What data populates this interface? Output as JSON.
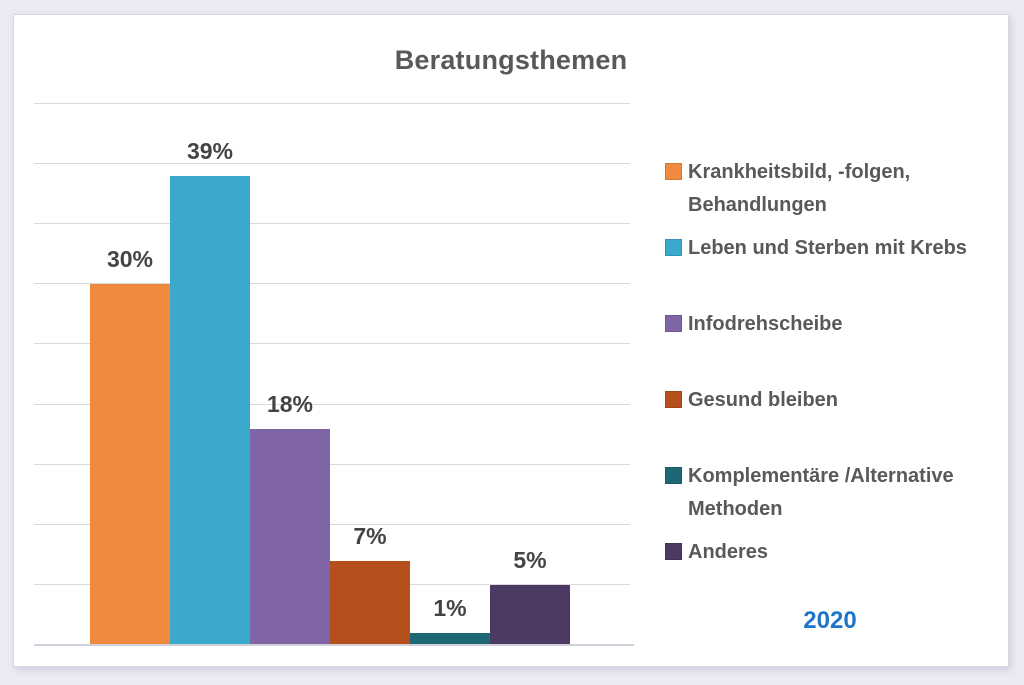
{
  "chart_data": {
    "type": "bar",
    "title": "Beratungsthemen",
    "categories": [
      "Krankheitsbild, -folgen,\nBehandlungen",
      "Leben und Sterben mit Krebs",
      "Infodrehscheibe",
      "Gesund bleiben",
      "Komplementäre /Alternative\nMethoden",
      "Anderes"
    ],
    "values": [
      30,
      39,
      18,
      7,
      1,
      5
    ],
    "value_labels": [
      "30%",
      "39%",
      "18%",
      "7%",
      "1%",
      "5%"
    ],
    "colors": [
      "#EF8A3E",
      "#3AA9CB",
      "#8065A6",
      "#B5501D",
      "#1E6876",
      "#4C3A64"
    ],
    "xlabel": "",
    "ylabel": "",
    "ylim": [
      0,
      45
    ],
    "gridline_step": 5,
    "grid": true,
    "legend_position": "right",
    "footnote": "2020",
    "footnote_color": "#1F75C8",
    "title_color": "#595959",
    "label_color": "#444444",
    "legend_text_color": "#595959",
    "gridline_color": "#D9D9D9"
  }
}
